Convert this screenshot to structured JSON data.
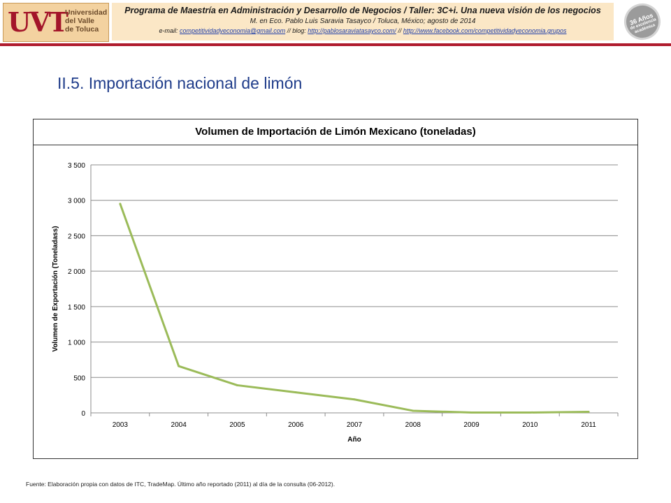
{
  "header": {
    "logo": {
      "mark": "UVT",
      "text": [
        "Universidad",
        "del Valle",
        "de Toluca"
      ]
    },
    "program_line1": "Programa de Maestría en Administración y Desarrollo de Negocios / Taller: 3C+i. Una nueva visión de los negocios",
    "program_line2": "M. en Eco. Pablo Luis Saravia Tasayco / Toluca, México; agosto de 2014",
    "contact": {
      "email_label": "e-mail:",
      "email": "competitividadyeconomia@gmail.com",
      "blog_sep": " // blog:",
      "blog": "http://pablosaraviatasayco.com/",
      "fb_sep": " //",
      "facebook": "http://www.facebook.com/competitividadyeconomia.grupos"
    },
    "seal": [
      "36 Años",
      "de excelencia",
      "académica"
    ]
  },
  "slide_title": "II.5. Importación nacional de limón",
  "source_note": "Fuente: Elaboración propia con datos de ITC, TradeMap. Último año reportado (2011) al día de la consulta (06-2012).",
  "colors": {
    "series": "#9bbb59",
    "title": "#1f3c8a",
    "header_rule": "#b01c2e"
  },
  "chart_data": {
    "type": "line",
    "title": "Volumen de Importación de Limón Mexicano (toneladas)",
    "xlabel": "Año",
    "ylabel": "Volumen de Exportación (Toneladass)",
    "categories": [
      "2003",
      "2004",
      "2005",
      "2006",
      "2007",
      "2008",
      "2009",
      "2010",
      "2011"
    ],
    "series": [
      {
        "values": [
          2950,
          660,
          390,
          290,
          190,
          30,
          5,
          5,
          15
        ]
      }
    ],
    "ylim": [
      0,
      3500
    ],
    "yticks": [
      0,
      500,
      1000,
      1500,
      2000,
      2500,
      3000,
      3500
    ],
    "ytick_labels": [
      "0",
      "500",
      "1 000",
      "1 500",
      "2 000",
      "2 500",
      "3 000",
      "3 500"
    ],
    "grid": true,
    "legend": "none"
  }
}
